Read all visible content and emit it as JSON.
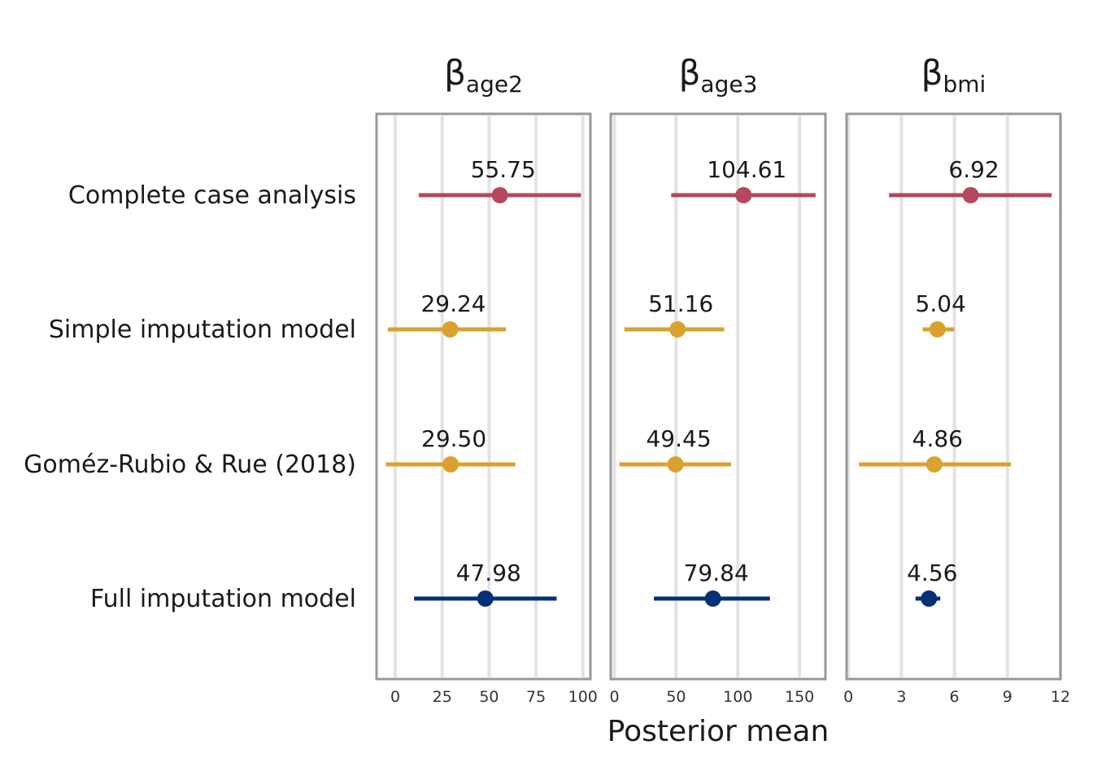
{
  "chart_data": {
    "type": "forest-plot",
    "xlabel": "Posterior mean",
    "grid": true,
    "rows": [
      {
        "label": "Complete case analysis",
        "color": "#b5475e"
      },
      {
        "label": "Simple imputation model",
        "color": "#dba12f"
      },
      {
        "label": "Goméz-Rubio & Rue (2018)",
        "color": "#dba12f"
      },
      {
        "label": "Full imputation model",
        "color": "#053076"
      }
    ],
    "panels": [
      {
        "title_symbol": "β",
        "title_subscript": "age2",
        "xlim": [
          -10,
          104
        ],
        "ticks": [
          0,
          25,
          50,
          75,
          100
        ],
        "tick_labels": [
          "0",
          "25",
          "50",
          "75",
          "100"
        ],
        "estimates": [
          {
            "mean": 55.75,
            "lower": 12.5,
            "upper": 99.0,
            "label": "55.75"
          },
          {
            "mean": 29.24,
            "lower": -4.0,
            "upper": 59.0,
            "label": "29.24"
          },
          {
            "mean": 29.5,
            "lower": -5.0,
            "upper": 64.0,
            "label": "29.50"
          },
          {
            "mean": 47.98,
            "lower": 10.0,
            "upper": 86.0,
            "label": "47.98"
          }
        ]
      },
      {
        "title_symbol": "β",
        "title_subscript": "age3",
        "xlim": [
          -3,
          171
        ],
        "ticks": [
          0,
          50,
          100,
          150
        ],
        "tick_labels": [
          "0",
          "50",
          "100",
          "150"
        ],
        "estimates": [
          {
            "mean": 104.61,
            "lower": 46.0,
            "upper": 163.0,
            "label": "104.61"
          },
          {
            "mean": 51.16,
            "lower": 8.0,
            "upper": 89.0,
            "label": "51.16"
          },
          {
            "mean": 49.45,
            "lower": 4.0,
            "upper": 94.5,
            "label": "49.45"
          },
          {
            "mean": 79.84,
            "lower": 32.0,
            "upper": 126.0,
            "label": "79.84"
          }
        ]
      },
      {
        "title_symbol": "β",
        "title_subscript": "bmi",
        "xlim": [
          -0.1,
          12.0
        ],
        "ticks": [
          0,
          3,
          6,
          9,
          12
        ],
        "tick_labels": [
          "0",
          "3",
          "6",
          "9",
          "12"
        ],
        "estimates": [
          {
            "mean": 6.92,
            "lower": 2.3,
            "upper": 11.5,
            "label": "6.92"
          },
          {
            "mean": 5.04,
            "lower": 4.2,
            "upper": 6.0,
            "label": "5.04"
          },
          {
            "mean": 4.86,
            "lower": 0.6,
            "upper": 9.2,
            "label": "4.86"
          },
          {
            "mean": 4.56,
            "lower": 3.8,
            "upper": 5.2,
            "label": "4.56"
          }
        ]
      }
    ]
  }
}
